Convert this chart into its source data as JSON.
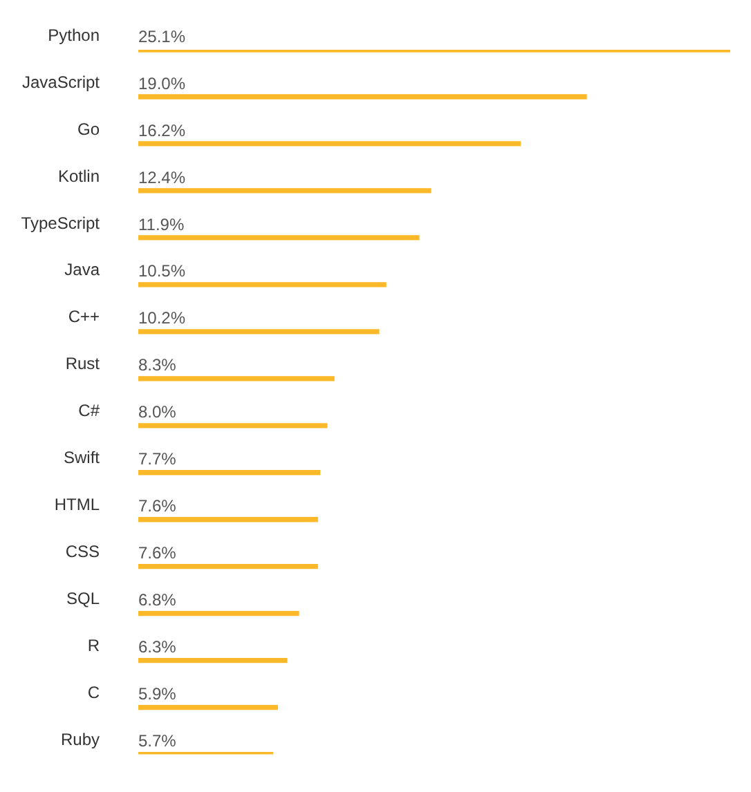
{
  "chart_data": {
    "type": "bar",
    "orientation": "horizontal",
    "categories": [
      "Python",
      "JavaScript",
      "Go",
      "Kotlin",
      "TypeScript",
      "Java",
      "C++",
      "Rust",
      "C#",
      "Swift",
      "HTML",
      "CSS",
      "SQL",
      "R",
      "C",
      "Ruby"
    ],
    "values": [
      25.1,
      19.0,
      16.2,
      12.4,
      11.9,
      10.5,
      10.2,
      8.3,
      8.0,
      7.7,
      7.6,
      7.6,
      6.8,
      6.3,
      5.9,
      5.7
    ],
    "value_labels": [
      "25.1%",
      "19.0%",
      "16.2%",
      "12.4%",
      "11.9%",
      "10.5%",
      "10.2%",
      "8.3%",
      "8.0%",
      "7.7%",
      "7.6%",
      "7.6%",
      "6.8%",
      "6.3%",
      "5.9%",
      "5.7%"
    ],
    "color": "#fbb829",
    "legend": false
  }
}
